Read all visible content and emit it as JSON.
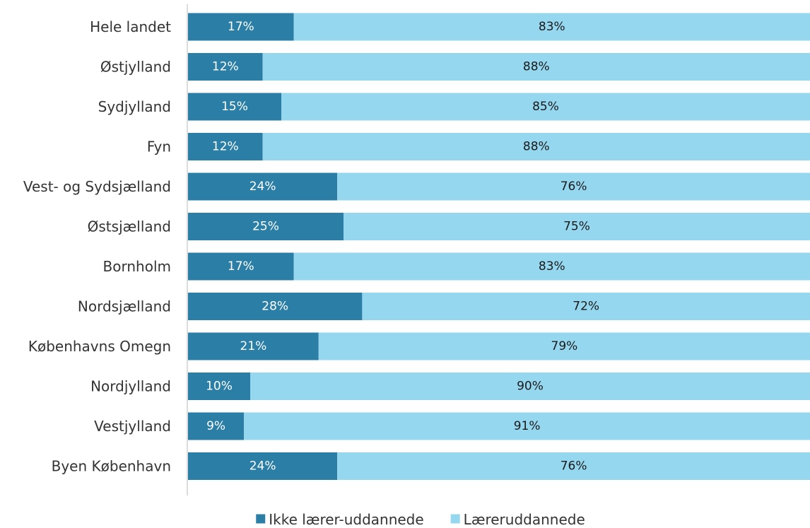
{
  "chart_data": {
    "type": "bar",
    "orientation": "horizontal",
    "stacked": true,
    "percent": true,
    "title": "",
    "xlabel": "",
    "ylabel": "",
    "categories": [
      "Hele landet",
      "Østjylland",
      "Sydjylland",
      "Fyn",
      "Vest- og Sydsjælland",
      "Østsjælland",
      "Bornholm",
      "Nordsjælland",
      "Københavns Omegn",
      "Nordjylland",
      "Vestjylland",
      "Byen København"
    ],
    "series": [
      {
        "name": "Ikke lærer-uddannede",
        "color": "#2b7fa6",
        "label_color": "#ffffff",
        "values": [
          17,
          12,
          15,
          12,
          24,
          25,
          17,
          28,
          21,
          10,
          9,
          24
        ]
      },
      {
        "name": "Læreruddannede",
        "color": "#96d7f0",
        "label_color": "#1a1a1a",
        "values": [
          83,
          88,
          85,
          88,
          76,
          75,
          83,
          72,
          79,
          90,
          91,
          76
        ]
      }
    ],
    "value_suffix": "%",
    "xlim": [
      0,
      100
    ],
    "grid": false,
    "legend_position": "bottom-center"
  }
}
